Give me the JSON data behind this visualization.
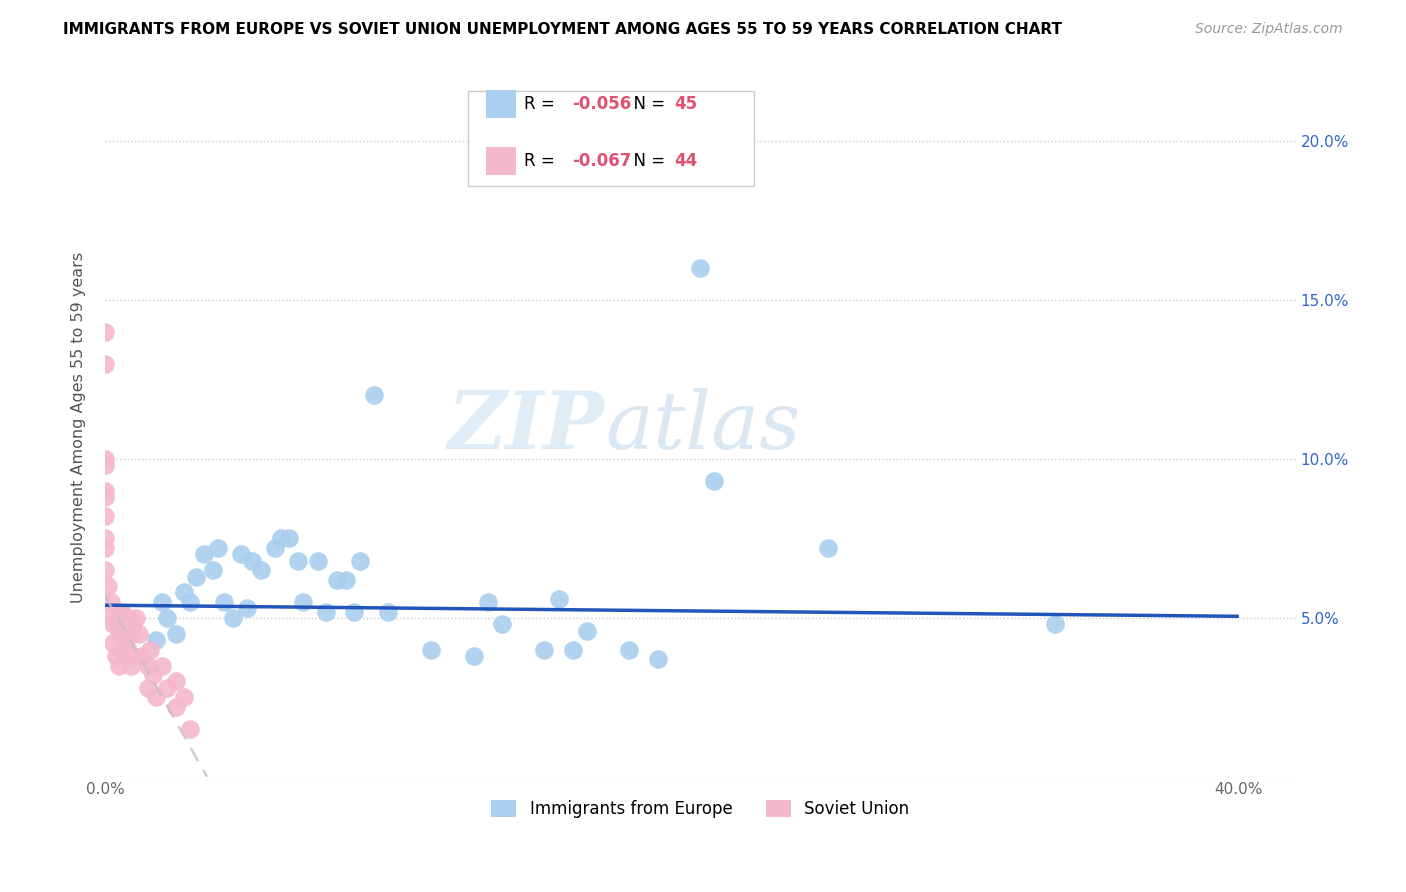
{
  "title": "IMMIGRANTS FROM EUROPE VS SOVIET UNION UNEMPLOYMENT AMONG AGES 55 TO 59 YEARS CORRELATION CHART",
  "source": "Source: ZipAtlas.com",
  "ylabel": "Unemployment Among Ages 55 to 59 years",
  "xlim": [
    0.0,
    0.42
  ],
  "ylim": [
    0.0,
    0.22
  ],
  "xticks": [
    0.0,
    0.05,
    0.1,
    0.15,
    0.2,
    0.25,
    0.3,
    0.35,
    0.4
  ],
  "yticks": [
    0.0,
    0.05,
    0.1,
    0.15,
    0.2
  ],
  "ytick_labels": [
    "0.0%",
    "5.0%",
    "10.0%",
    "15.0%",
    "20.0%"
  ],
  "xtick_labels": [
    "0.0%",
    "",
    "",
    "",
    "",
    "",
    "",
    "",
    "40.0%"
  ],
  "europe_color": "#aacfee",
  "soviet_color": "#f4b8cc",
  "europe_R": -0.056,
  "europe_N": 45,
  "soviet_R": -0.067,
  "soviet_N": 44,
  "europe_scatter_x": [
    0.005,
    0.01,
    0.018,
    0.02,
    0.022,
    0.025,
    0.028,
    0.03,
    0.032,
    0.035,
    0.038,
    0.04,
    0.042,
    0.045,
    0.048,
    0.05,
    0.052,
    0.055,
    0.06,
    0.062,
    0.065,
    0.068,
    0.07,
    0.075,
    0.078,
    0.082,
    0.085,
    0.088,
    0.09,
    0.095,
    0.1,
    0.115,
    0.13,
    0.135,
    0.14,
    0.155,
    0.16,
    0.165,
    0.17,
    0.185,
    0.195,
    0.21,
    0.215,
    0.255,
    0.335
  ],
  "europe_scatter_y": [
    0.052,
    0.048,
    0.043,
    0.055,
    0.05,
    0.045,
    0.058,
    0.055,
    0.063,
    0.07,
    0.065,
    0.072,
    0.055,
    0.05,
    0.07,
    0.053,
    0.068,
    0.065,
    0.072,
    0.075,
    0.075,
    0.068,
    0.055,
    0.068,
    0.052,
    0.062,
    0.062,
    0.052,
    0.068,
    0.12,
    0.052,
    0.04,
    0.038,
    0.055,
    0.048,
    0.04,
    0.056,
    0.04,
    0.046,
    0.04,
    0.037,
    0.16,
    0.093,
    0.072,
    0.048
  ],
  "soviet_scatter_x": [
    0.0,
    0.0,
    0.0,
    0.0,
    0.0,
    0.0,
    0.0,
    0.0,
    0.0,
    0.0,
    0.001,
    0.002,
    0.002,
    0.003,
    0.003,
    0.004,
    0.004,
    0.005,
    0.005,
    0.005,
    0.006,
    0.006,
    0.007,
    0.007,
    0.008,
    0.008,
    0.009,
    0.009,
    0.01,
    0.01,
    0.011,
    0.012,
    0.013,
    0.015,
    0.015,
    0.016,
    0.017,
    0.018,
    0.02,
    0.022,
    0.025,
    0.025,
    0.028,
    0.03
  ],
  "soviet_scatter_y": [
    0.14,
    0.13,
    0.1,
    0.098,
    0.09,
    0.088,
    0.082,
    0.075,
    0.072,
    0.065,
    0.06,
    0.055,
    0.052,
    0.048,
    0.042,
    0.048,
    0.038,
    0.05,
    0.045,
    0.035,
    0.052,
    0.04,
    0.048,
    0.042,
    0.05,
    0.04,
    0.045,
    0.035,
    0.048,
    0.038,
    0.05,
    0.045,
    0.038,
    0.035,
    0.028,
    0.04,
    0.032,
    0.025,
    0.035,
    0.028,
    0.03,
    0.022,
    0.025,
    0.015
  ],
  "europe_trend_x": [
    0.0,
    0.4
  ],
  "europe_trend_y": [
    0.054,
    0.0505
  ],
  "soviet_trend_x": [
    0.0,
    0.036
  ],
  "soviet_trend_y": [
    0.057,
    0.0
  ],
  "watermark_zip": "ZIP",
  "watermark_atlas": "atlas",
  "legend_blue_label": "Immigrants from Europe",
  "legend_pink_label": "Soviet Union",
  "right_axis_color": "#3366cc",
  "right_ytick_labels": [
    "",
    "5.0%",
    "10.0%",
    "15.0%",
    "20.0%"
  ]
}
